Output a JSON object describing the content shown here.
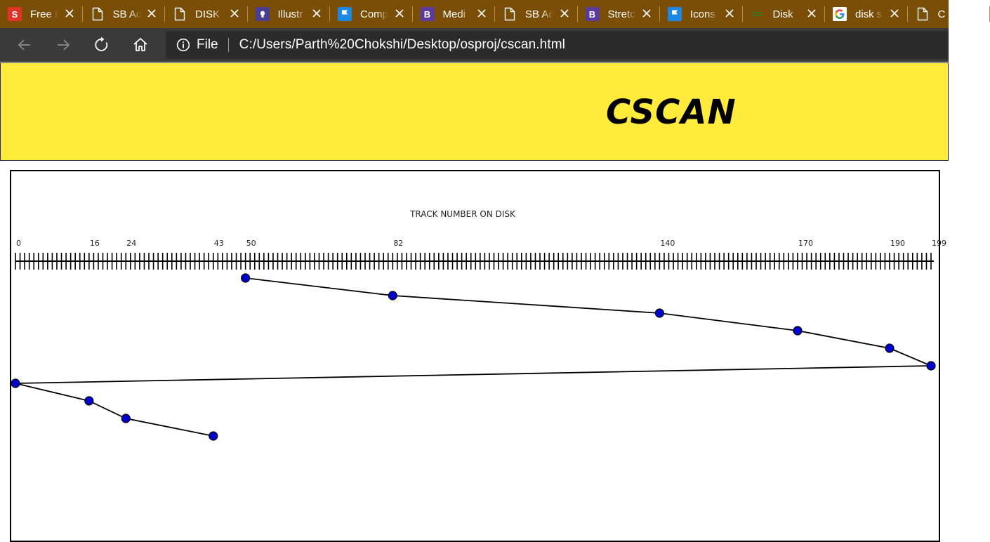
{
  "browser": {
    "tabs": [
      {
        "icon": "s-brand-icon",
        "title": "Free I"
      },
      {
        "icon": "document-icon",
        "title": "SB Ad"
      },
      {
        "icon": "document-icon",
        "title": "DISK"
      },
      {
        "icon": "illustration-brand-icon",
        "title": "Illustr"
      },
      {
        "icon": "flag-icon",
        "title": "Comp"
      },
      {
        "icon": "bootstrap-icon",
        "title": "Medi"
      },
      {
        "icon": "document-icon",
        "title": "SB Ad"
      },
      {
        "icon": "bootstrap-icon",
        "title": "Stretc"
      },
      {
        "icon": "flag-icon",
        "title": "Icons"
      },
      {
        "icon": "wave-icon",
        "title": "Disk"
      },
      {
        "icon": "google-icon",
        "title": "disk s"
      },
      {
        "icon": "document-icon",
        "title": "C"
      }
    ],
    "address": {
      "scheme": "File",
      "url": "C:/Users/Parth%20Chokshi/Desktop/osproj/cscan.html"
    }
  },
  "page": {
    "title": "CSCAN"
  },
  "chart_data": {
    "type": "line",
    "title": "TRACK NUMBER ON DISK",
    "x_range": [
      0,
      199
    ],
    "x_tick_labels": [
      0,
      16,
      24,
      43,
      50,
      82,
      140,
      170,
      190,
      199
    ],
    "sequence": [
      50,
      82,
      140,
      170,
      190,
      199,
      0,
      16,
      24,
      43
    ],
    "grid": false,
    "colors": {
      "point": "#0000cc",
      "line": "#000000",
      "banner": "#ffeb3b"
    }
  }
}
